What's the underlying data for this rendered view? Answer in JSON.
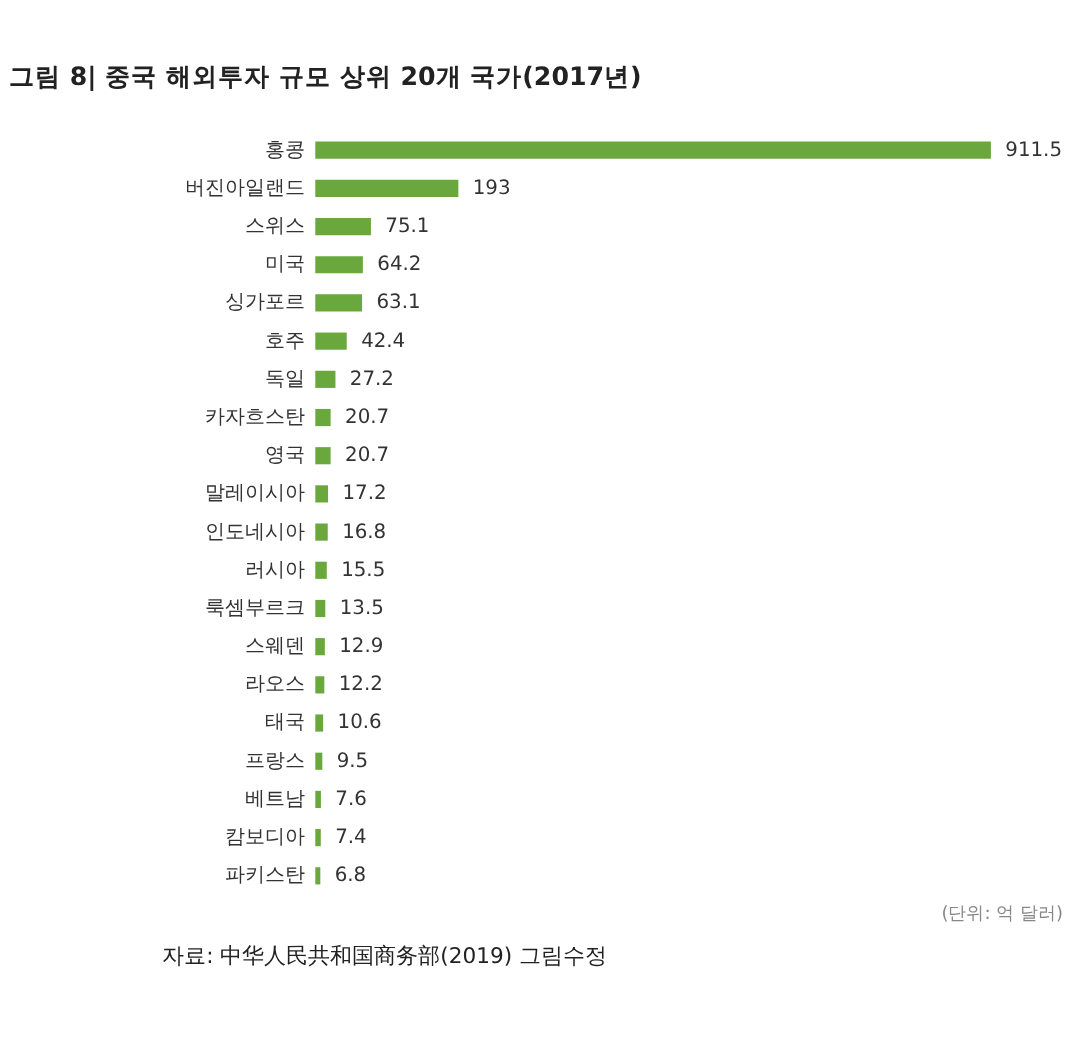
{
  "chart_data": {
    "type": "bar",
    "orientation": "horizontal",
    "title": "그림 8| 중국 해외투자 규모 상위 20개 국가(2017년)",
    "categories": [
      "홍콩",
      "버진아일랜드",
      "스위스",
      "미국",
      "싱가포르",
      "호주",
      "독일",
      "카자흐스탄",
      "영국",
      "말레이시아",
      "인도네시아",
      "러시아",
      "룩셈부르크",
      "스웨덴",
      "라오스",
      "태국",
      "프랑스",
      "베트남",
      "캄보디아",
      "파키스탄"
    ],
    "values": [
      911.5,
      193,
      75.1,
      64.2,
      63.1,
      42.4,
      27.2,
      20.7,
      20.7,
      17.2,
      16.8,
      15.5,
      13.5,
      12.9,
      12.2,
      10.6,
      9.5,
      7.6,
      7.4,
      6.8
    ],
    "value_labels": [
      "911.5",
      "193",
      "75.1",
      "64.2",
      "63.1",
      "42.4",
      "27.2",
      "20.7",
      "20.7",
      "17.2",
      "16.8",
      "15.5",
      "13.5",
      "12.9",
      "12.2",
      "10.6",
      "9.5",
      "7.6",
      "7.4",
      "6.8"
    ],
    "color": "#6aa83e",
    "grid": false,
    "annotations": [
      "(단위: 억 달러)",
      "자료: 中华人民共和国商务部(2019) 그림수정"
    ]
  }
}
